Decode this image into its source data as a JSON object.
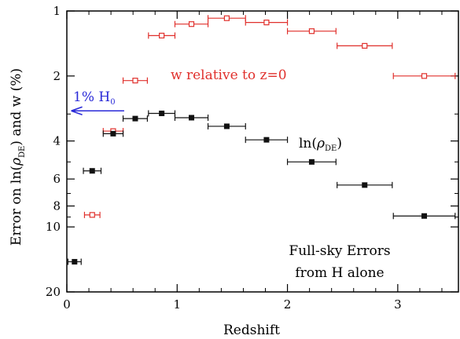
{
  "chart_data": {
    "type": "scatter",
    "xlabel": "Redshift",
    "ylabel_parts": {
      "pre": "Error on ln(",
      "rho": "ρ",
      "sub": "DE",
      "post": ") and w (%)"
    },
    "x_axis": {
      "min": 0,
      "max": 3.55,
      "ticks": [
        0,
        1,
        2,
        3
      ]
    },
    "y_axis": {
      "scale": "log",
      "min": 1,
      "max": 20,
      "ticks": [
        1,
        2,
        4,
        6,
        8,
        10,
        20
      ]
    },
    "series": [
      {
        "key": "w",
        "color": "#e0302c",
        "marker": "open-square",
        "points": [
          {
            "x": 0.23,
            "y": 8.8,
            "xerr": 0.07
          },
          {
            "x": 0.42,
            "y": 3.6,
            "xerr": 0.09
          },
          {
            "x": 0.62,
            "y": 2.1,
            "xerr": 0.11
          },
          {
            "x": 0.86,
            "y": 1.3,
            "xerr": 0.12
          },
          {
            "x": 1.13,
            "y": 1.15,
            "xerr": 0.15
          },
          {
            "x": 1.45,
            "y": 1.08,
            "xerr": 0.17
          },
          {
            "x": 1.81,
            "y": 1.13,
            "xerr": 0.19
          },
          {
            "x": 2.22,
            "y": 1.24,
            "xerr": 0.22
          },
          {
            "x": 2.7,
            "y": 1.45,
            "xerr": 0.25
          },
          {
            "x": 3.24,
            "y": 2.0,
            "xerr": 0.28
          }
        ]
      },
      {
        "key": "ln_rho",
        "color": "#111111",
        "marker": "filled-square",
        "points": [
          {
            "x": 0.07,
            "y": 14.5,
            "xerr": 0.06
          },
          {
            "x": 0.23,
            "y": 5.5,
            "xerr": 0.08
          },
          {
            "x": 0.42,
            "y": 3.7,
            "xerr": 0.09
          },
          {
            "x": 0.62,
            "y": 3.15,
            "xerr": 0.11
          },
          {
            "x": 0.86,
            "y": 2.98,
            "xerr": 0.12
          },
          {
            "x": 1.13,
            "y": 3.12,
            "xerr": 0.15
          },
          {
            "x": 1.45,
            "y": 3.42,
            "xerr": 0.17
          },
          {
            "x": 1.81,
            "y": 3.95,
            "xerr": 0.19
          },
          {
            "x": 2.22,
            "y": 5.0,
            "xerr": 0.22
          },
          {
            "x": 2.7,
            "y": 6.4,
            "xerr": 0.25
          },
          {
            "x": 3.24,
            "y": 8.9,
            "xerr": 0.28
          }
        ]
      }
    ],
    "annotations": {
      "w_label": "w relative to z=0",
      "ln_label_pre": "ln(",
      "ln_label_rho": "ρ",
      "ln_label_sub": "DE",
      "ln_label_post": ")",
      "h0_label_pre": "1% H",
      "h0_label_sub": "0",
      "h0_arrow": {
        "y": 2.9,
        "x_from": 0.52,
        "x_to": 0.04
      },
      "caption_line1": "Full-sky Errors",
      "caption_line2": "from H alone"
    },
    "colors": {
      "w": "#e0302c",
      "ln": "#111111",
      "h0": "#2a2ad8"
    },
    "grid": false
  }
}
